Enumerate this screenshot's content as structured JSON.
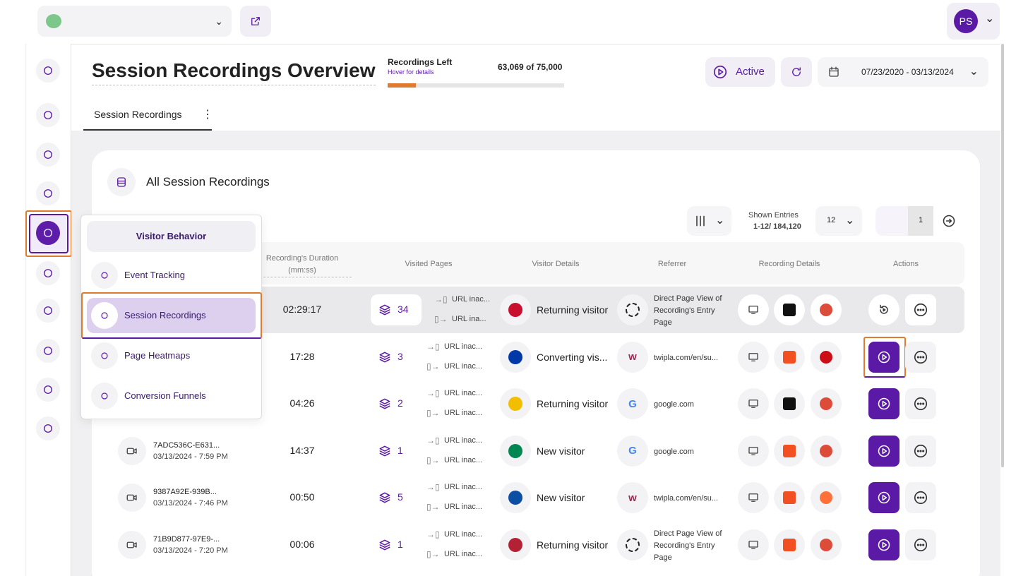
{
  "header": {
    "avatar": "PS"
  },
  "page": {
    "title": "Session Recordings Overview",
    "recordings": {
      "label": "Recordings Left",
      "hint": "Hover for details",
      "left": {
        "value": 63069,
        "label": "63,069"
      },
      "of": "of",
      "total": {
        "value": 75000,
        "label": "75,000"
      }
    },
    "status": "Active",
    "date_range": "07/23/2020 - 03/13/2024",
    "tab": "Session Recordings"
  },
  "card": {
    "title": "All Session Recordings",
    "shown_label": "Shown Entries",
    "shown_value": "1-12/ 184,120",
    "page_size": "12",
    "page": "1"
  },
  "table": {
    "headers": [
      "Recording's Duration (mm:ss)",
      "Visited Pages",
      "Visitor Details",
      "Referrer",
      "Recording Details",
      "Actions"
    ],
    "rows": [
      {
        "duration": "02:29:17",
        "pages": 34,
        "entry": "URL inac...",
        "exit": "URL ina...",
        "visitor": "Returning visitor",
        "referrer": "Direct Page View of Recording's Entry Page"
      },
      {
        "duration": "17:28",
        "pages": 3,
        "entry": "URL inac...",
        "exit": "URL inac...",
        "visitor": "Converting vis...",
        "referrer": "twipla.com/en/su..."
      },
      {
        "duration": "04:26",
        "pages": 2,
        "entry": "URL inac...",
        "exit": "URL inac...",
        "visitor": "Returning visitor",
        "referrer": "google.com"
      },
      {
        "id": "7ADC536C-E631...",
        "date": "03/13/2024 - 7:59 PM",
        "duration": "14:37",
        "pages": 1,
        "entry": "URL inac...",
        "exit": "URL inac...",
        "visitor": "New visitor",
        "referrer": "google.com"
      },
      {
        "id": "9387A92E-939B...",
        "date": "03/13/2024 - 7:46 PM",
        "duration": "00:50",
        "pages": 5,
        "entry": "URL inac...",
        "exit": "URL inac...",
        "visitor": "New visitor",
        "referrer": "twipla.com/en/su..."
      },
      {
        "id": "71B9D877-97E9-...",
        "date": "03/13/2024 - 7:20 PM",
        "duration": "00:06",
        "pages": 1,
        "entry": "URL inac...",
        "exit": "URL inac...",
        "visitor": "Returning visitor",
        "referrer": "Direct Page View of Recording's Entry Page"
      }
    ]
  },
  "menu": {
    "title": "Visitor Behavior",
    "items": [
      "Event Tracking",
      "Session Recordings",
      "Page Heatmaps",
      "Conversion Funnels"
    ]
  }
}
